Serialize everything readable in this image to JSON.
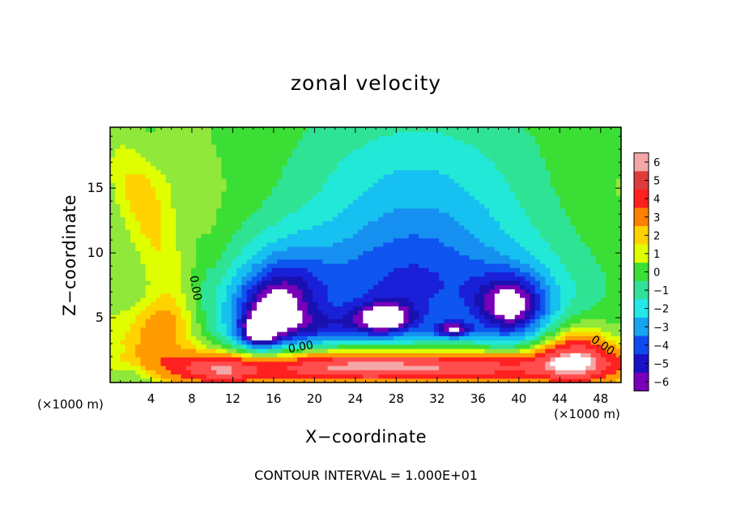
{
  "chart_data": {
    "type": "heatmap",
    "title": "zonal velocity",
    "xlabel": "X−coordinate",
    "ylabel": "Z−coordinate",
    "x_unit_left": "(×1000 m)",
    "x_unit_right": "(×1000 m)",
    "footnote": "CONTOUR INTERVAL = 1.000E+01",
    "x_ticks": [
      4,
      8,
      12,
      16,
      20,
      24,
      28,
      32,
      36,
      40,
      44,
      48
    ],
    "y_ticks": [
      5,
      10,
      15
    ],
    "xlim": [
      0,
      50
    ],
    "ylim": [
      0,
      19.7
    ],
    "colorbar": {
      "levels": [
        6,
        5,
        4,
        3,
        2,
        1,
        0,
        -1,
        -2,
        -3,
        -4,
        -5,
        -6
      ],
      "level_labels": [
        "6",
        "5",
        "4",
        "3",
        "2",
        "1",
        "0",
        "−1",
        "−2",
        "−3",
        "−4",
        "−5",
        "−6"
      ],
      "colors": [
        "#f4a7a7",
        "#e03b3b",
        "#ff2020",
        "#ff7f00",
        "#ffd200",
        "#dfff00",
        "#3bde35",
        "#33e09a",
        "#22e8e8",
        "#16a5f0",
        "#0f4af0",
        "#1a10c8",
        "#7800b8"
      ],
      "fill": [
        {
          "lo": 5.5,
          "hi": 99,
          "color": "#ffffff"
        },
        {
          "lo": 5.0,
          "hi": 5.5,
          "color": "#f4a7a7"
        },
        {
          "lo": 4.0,
          "hi": 5.0,
          "color": "#ff4d4d"
        },
        {
          "lo": 3.0,
          "hi": 4.0,
          "color": "#ff2020"
        },
        {
          "lo": 2.0,
          "hi": 3.0,
          "color": "#ff9a00"
        },
        {
          "lo": 1.5,
          "hi": 2.0,
          "color": "#ffd200"
        },
        {
          "lo": 1.0,
          "hi": 1.5,
          "color": "#dfff00"
        },
        {
          "lo": 0.3,
          "hi": 1.0,
          "color": "#8fe83a"
        },
        {
          "lo": -0.4,
          "hi": 0.3,
          "color": "#3bde35"
        },
        {
          "lo": -1.2,
          "hi": -0.4,
          "color": "#2fe395"
        },
        {
          "lo": -2.0,
          "hi": -1.2,
          "color": "#22e8d8"
        },
        {
          "lo": -2.8,
          "hi": -2.0,
          "color": "#16c0f0"
        },
        {
          "lo": -3.5,
          "hi": -2.8,
          "color": "#1690f0"
        },
        {
          "lo": -4.2,
          "hi": -3.5,
          "color": "#0f55f0"
        },
        {
          "lo": -4.8,
          "hi": -4.2,
          "color": "#1a20d8"
        },
        {
          "lo": -5.4,
          "hi": -4.8,
          "color": "#1a10b0"
        },
        {
          "lo": -5.9,
          "hi": -5.4,
          "color": "#7800b8"
        },
        {
          "lo": -99,
          "hi": -5.9,
          "color": "#ffffff"
        }
      ]
    },
    "contours": [
      {
        "label": "0.00",
        "value": 0.0,
        "placement": "left upper green region"
      },
      {
        "label": "0.00",
        "value": 0.0,
        "placement": "near surface around x=17"
      },
      {
        "label": "0.00",
        "value": 0.0,
        "placement": "right surface region around x=46"
      }
    ],
    "field_features": [
      {
        "x": 4.5,
        "z": 4.0,
        "value": 2.5
      },
      {
        "x": 7.0,
        "z": 8.0,
        "value": 0.4
      },
      {
        "x": 14.5,
        "z": 3.8,
        "value": -6.5
      },
      {
        "x": 27.0,
        "z": 5.0,
        "value": -6.5
      },
      {
        "x": 33.5,
        "z": 4.1,
        "value": -6.5
      },
      {
        "x": 39.5,
        "z": 5.8,
        "value": -6.5
      },
      {
        "x": 30.0,
        "z": 13.0,
        "value": -3.0
      },
      {
        "x": 24.0,
        "z": 1.6,
        "value": 4.5
      },
      {
        "x": 45.5,
        "z": 2.0,
        "value": 4.5
      }
    ]
  }
}
